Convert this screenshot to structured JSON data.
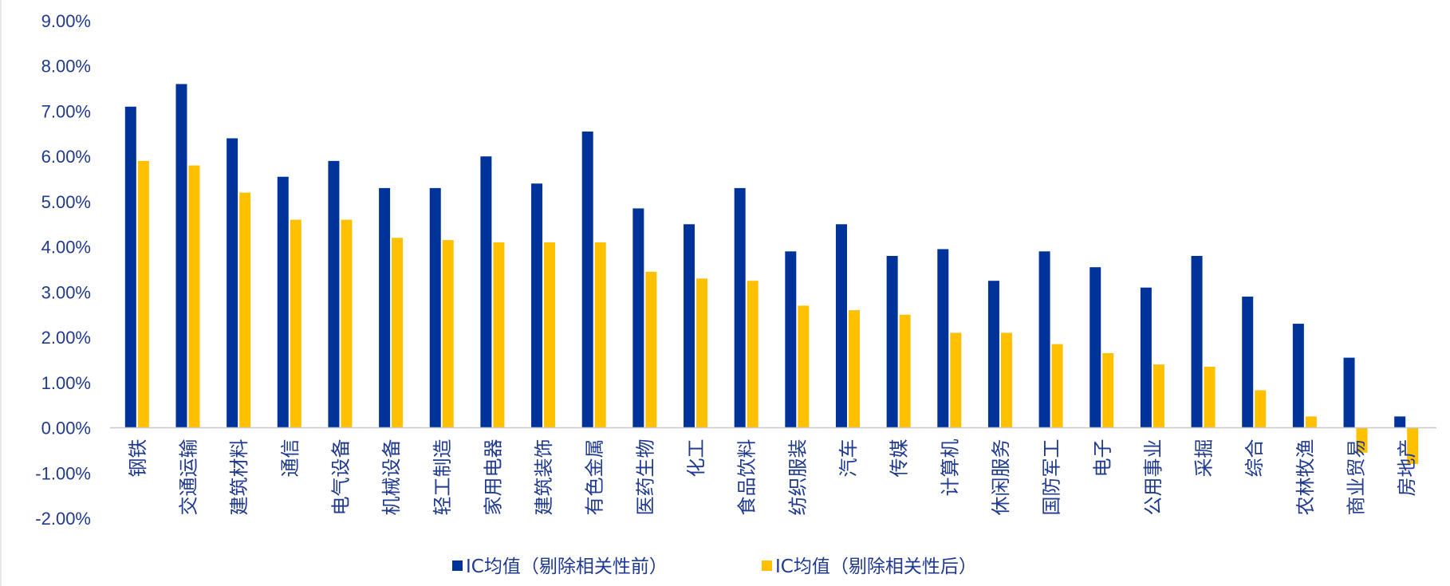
{
  "chart_data": {
    "type": "bar",
    "title": "",
    "xlabel": "",
    "ylabel": "",
    "ylim": [
      -0.02,
      0.09
    ],
    "yticks": [
      "9.00%",
      "8.00%",
      "7.00%",
      "6.00%",
      "5.00%",
      "4.00%",
      "3.00%",
      "2.00%",
      "1.00%",
      "0.00%",
      "-1.00%",
      "-2.00%"
    ],
    "grid": false,
    "legend": "bottom",
    "categories": [
      "钢铁",
      "交通运输",
      "建筑材料",
      "通信",
      "电气设备",
      "机械设备",
      "轻工制造",
      "家用电器",
      "建筑装饰",
      "有色金属",
      "医药生物",
      "化工",
      "食品饮料",
      "纺织服装",
      "汽车",
      "传媒",
      "计算机",
      "休闲服务",
      "国防军工",
      "电子",
      "公用事业",
      "采掘",
      "综合",
      "农林牧渔",
      "商业贸易",
      "房地产"
    ],
    "series": [
      {
        "name": "IC均值（剔除相关性前）",
        "color": "#003399",
        "values": [
          0.071,
          0.076,
          0.064,
          0.0555,
          0.059,
          0.053,
          0.053,
          0.06,
          0.054,
          0.0655,
          0.0485,
          0.045,
          0.053,
          0.039,
          0.045,
          0.038,
          0.0395,
          0.0325,
          0.039,
          0.0355,
          0.031,
          0.038,
          0.029,
          0.023,
          0.0155,
          0.0025
        ]
      },
      {
        "name": "IC均值（剔除相关性后）",
        "color": "#FFC000",
        "values": [
          0.059,
          0.058,
          0.052,
          0.046,
          0.046,
          0.042,
          0.0415,
          0.041,
          0.041,
          0.041,
          0.0345,
          0.033,
          0.0325,
          0.027,
          0.026,
          0.025,
          0.021,
          0.021,
          0.0185,
          0.0165,
          0.014,
          0.0135,
          0.0083,
          0.0025,
          -0.0055,
          -0.008
        ]
      }
    ]
  }
}
